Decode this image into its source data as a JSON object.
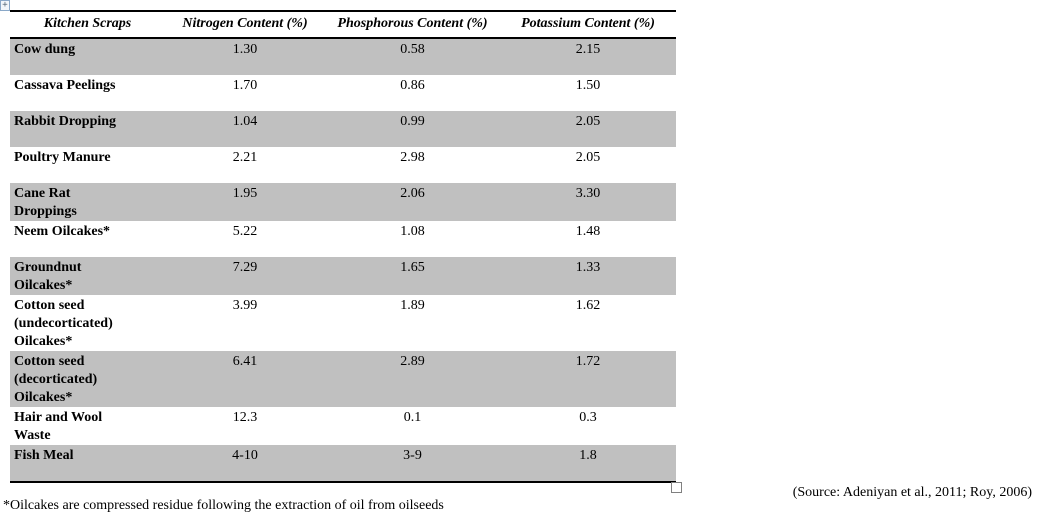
{
  "table": {
    "shade_color": "#c0c0c0",
    "columns": [
      "Kitchen Scraps",
      "Nitrogen Content (%)",
      "Phosphorous Content (%)",
      "Potassium Content (%)"
    ],
    "rows": [
      {
        "label": "Cow dung",
        "nitrogen": "1.30",
        "phosphorous": "0.58",
        "potassium": "2.15"
      },
      {
        "label": "Cassava Peelings",
        "nitrogen": "1.70",
        "phosphorous": "0.86",
        "potassium": "1.50"
      },
      {
        "label": "Rabbit Dropping",
        "nitrogen": "1.04",
        "phosphorous": "0.99",
        "potassium": "2.05"
      },
      {
        "label": "Poultry Manure",
        "nitrogen": "2.21",
        "phosphorous": "2.98",
        "potassium": "2.05"
      },
      {
        "label": "Cane Rat\nDroppings",
        "nitrogen": "1.95",
        "phosphorous": "2.06",
        "potassium": "3.30"
      },
      {
        "label": "Neem Oilcakes*",
        "nitrogen": "5.22",
        "phosphorous": "1.08",
        "potassium": "1.48"
      },
      {
        "label": "Groundnut\nOilcakes*",
        "nitrogen": "7.29",
        "phosphorous": "1.65",
        "potassium": "1.33"
      },
      {
        "label": "Cotton seed\n(undecorticated)\nOilcakes*",
        "nitrogen": "3.99",
        "phosphorous": "1.89",
        "potassium": "1.62"
      },
      {
        "label": "Cotton seed\n(decorticated)\nOilcakes*",
        "nitrogen": "6.41",
        "phosphorous": "2.89",
        "potassium": "1.72"
      },
      {
        "label": "Hair and Wool\nWaste",
        "nitrogen": "12.3",
        "phosphorous": "0.1",
        "potassium": "0.3"
      },
      {
        "label": "Fish Meal",
        "nitrogen": "4-10",
        "phosphorous": "3-9",
        "potassium": "1.8"
      }
    ]
  },
  "handles": {
    "move_glyph": "+"
  },
  "footnote": "*Oilcakes are compressed residue following the extraction of oil from oilseeds",
  "source": "(Source: Adeniyan et al., 2011; Roy, 2006)"
}
